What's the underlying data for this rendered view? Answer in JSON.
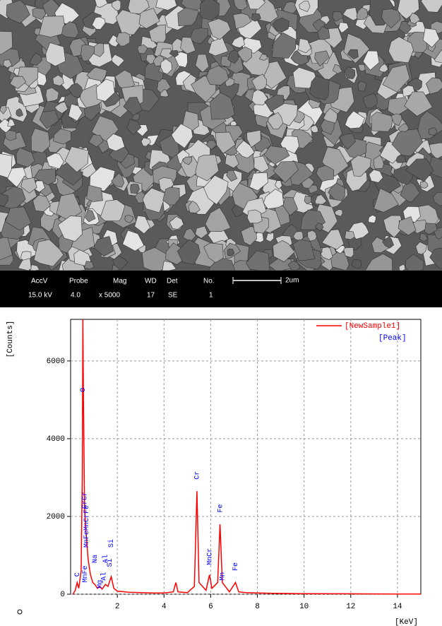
{
  "sem_info": {
    "headers": [
      "AccV",
      "Probe",
      "Mag",
      "WD",
      "Det",
      "No."
    ],
    "values": [
      "15.0 kV",
      "4.0",
      "x 5000",
      "17",
      "SE",
      "1"
    ],
    "scale_bar": "2um"
  },
  "chart_data": {
    "type": "line",
    "y_label": "[Counts]",
    "x_label": "[KeV]",
    "x": [
      0.1,
      0.2,
      0.28,
      0.35,
      0.45,
      0.5,
      0.525,
      0.55,
      0.6,
      0.65,
      0.7,
      0.75,
      0.85,
      0.95,
      1.04,
      1.15,
      1.25,
      1.35,
      1.49,
      1.6,
      1.74,
      1.85,
      2.0,
      2.5,
      3.0,
      3.5,
      4.0,
      4.4,
      4.51,
      4.6,
      5.0,
      5.3,
      5.41,
      5.5,
      5.8,
      5.95,
      6.05,
      6.3,
      6.4,
      6.5,
      6.8,
      7.06,
      7.2,
      7.5,
      8,
      9,
      10,
      12,
      14,
      15
    ],
    "series": [
      {
        "name": "[NewSample1]",
        "color": "#ff0000",
        "values": [
          0,
          100,
          300,
          150,
          600,
          3000,
          7070,
          5000,
          2200,
          1700,
          1300,
          900,
          500,
          300,
          250,
          150,
          200,
          130,
          250,
          200,
          450,
          150,
          80,
          50,
          40,
          30,
          30,
          60,
          300,
          60,
          40,
          200,
          2650,
          300,
          100,
          500,
          150,
          300,
          1800,
          300,
          60,
          300,
          60,
          40,
          30,
          20,
          15,
          10,
          5,
          5
        ]
      }
    ],
    "peak_legend": "[Peak]",
    "peak_color": "#0000ff",
    "peaks": [
      {
        "label": "C",
        "x": 0.28,
        "y": 450
      },
      {
        "label": "O",
        "x": 0.52,
        "y": 5200
      },
      {
        "label": "CrCr",
        "x": 0.6,
        "y": 2200
      },
      {
        "label": "MnFeMnCrFe",
        "x": 0.68,
        "y": 1200
      },
      {
        "label": "MnFe",
        "x": 0.62,
        "y": 300
      },
      {
        "label": "Na",
        "x": 1.04,
        "y": 800
      },
      {
        "label": "Mg",
        "x": 1.25,
        "y": 150
      },
      {
        "label": "Al",
        "x": 1.49,
        "y": 800
      },
      {
        "label": "Al",
        "x": 1.42,
        "y": 350
      },
      {
        "label": "Si",
        "x": 1.74,
        "y": 1200
      },
      {
        "label": "Si",
        "x": 1.68,
        "y": 700
      },
      {
        "label": "Cr",
        "x": 5.41,
        "y": 2950
      },
      {
        "label": "MnCr",
        "x": 5.95,
        "y": 750
      },
      {
        "label": "Fe",
        "x": 6.4,
        "y": 2100
      },
      {
        "label": "Mn",
        "x": 6.5,
        "y": 350
      },
      {
        "label": "Fe",
        "x": 7.06,
        "y": 600
      }
    ],
    "xlim": [
      0,
      15
    ],
    "ylim": [
      0,
      7070
    ],
    "xticks": [
      2,
      4,
      6,
      8,
      10,
      12,
      14
    ],
    "yticks": [
      0,
      2000,
      4000,
      6000
    ],
    "grid": true
  }
}
